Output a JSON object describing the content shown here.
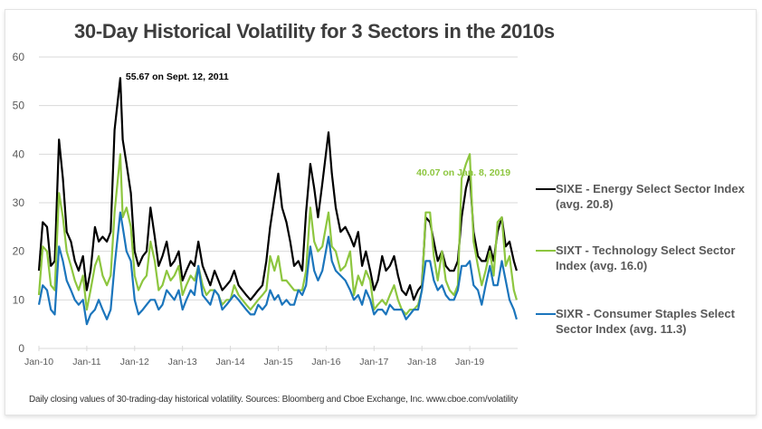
{
  "chart_data": {
    "type": "line",
    "title": "30-Day Historical Volatility for 3 Sectors in the 2010s",
    "xlabel": "",
    "ylabel": "",
    "ylim": [
      0,
      60
    ],
    "xlim": [
      2010.0,
      2020.0
    ],
    "yticks": [
      0,
      10,
      20,
      30,
      40,
      50,
      60
    ],
    "xticks": [
      {
        "value": 2010,
        "label": "Jan-10"
      },
      {
        "value": 2011,
        "label": "Jan-11"
      },
      {
        "value": 2012,
        "label": "Jan-12"
      },
      {
        "value": 2013,
        "label": "Jan-13"
      },
      {
        "value": 2014,
        "label": "Jan-14"
      },
      {
        "value": 2015,
        "label": "Jan-15"
      },
      {
        "value": 2016,
        "label": "Jan-16"
      },
      {
        "value": 2017,
        "label": "Jan-17"
      },
      {
        "value": 2018,
        "label": "Jan-18"
      },
      {
        "value": 2019,
        "label": "Jan-19"
      }
    ],
    "grid": true,
    "legend_position": "right",
    "series": [
      {
        "name": "SIXE - Energy Select Sector Index (avg. 20.8)",
        "color": "#000000",
        "x": [
          2010.0,
          2010.08,
          2010.17,
          2010.25,
          2010.33,
          2010.42,
          2010.5,
          2010.58,
          2010.67,
          2010.75,
          2010.83,
          2010.92,
          2011.0,
          2011.08,
          2011.17,
          2011.25,
          2011.33,
          2011.42,
          2011.5,
          2011.58,
          2011.7,
          2011.75,
          2011.83,
          2011.92,
          2012.0,
          2012.08,
          2012.17,
          2012.25,
          2012.33,
          2012.42,
          2012.5,
          2012.58,
          2012.67,
          2012.75,
          2012.83,
          2012.92,
          2013.0,
          2013.08,
          2013.17,
          2013.25,
          2013.33,
          2013.42,
          2013.5,
          2013.58,
          2013.67,
          2013.75,
          2013.83,
          2013.92,
          2014.0,
          2014.08,
          2014.17,
          2014.25,
          2014.33,
          2014.42,
          2014.5,
          2014.58,
          2014.67,
          2014.75,
          2014.83,
          2014.92,
          2015.0,
          2015.08,
          2015.17,
          2015.25,
          2015.33,
          2015.42,
          2015.5,
          2015.58,
          2015.67,
          2015.75,
          2015.83,
          2015.92,
          2016.05,
          2016.12,
          2016.2,
          2016.3,
          2016.4,
          2016.5,
          2016.58,
          2016.67,
          2016.75,
          2016.83,
          2016.92,
          2017.0,
          2017.08,
          2017.17,
          2017.25,
          2017.33,
          2017.42,
          2017.5,
          2017.58,
          2017.67,
          2017.75,
          2017.83,
          2017.92,
          2018.0,
          2018.08,
          2018.17,
          2018.25,
          2018.33,
          2018.42,
          2018.5,
          2018.58,
          2018.67,
          2018.75,
          2018.83,
          2018.92,
          2019.0,
          2019.08,
          2019.17,
          2019.25,
          2019.33,
          2019.42,
          2019.5,
          2019.58,
          2019.67,
          2019.75,
          2019.83,
          2019.92,
          2019.98
        ],
        "values": [
          16,
          26,
          25,
          17,
          18,
          43,
          35,
          24,
          22,
          18,
          16,
          19,
          12,
          16,
          25,
          22,
          23,
          22,
          24,
          45,
          55.67,
          43,
          38,
          32,
          20,
          17,
          19,
          20,
          29,
          23,
          17,
          19,
          22,
          17,
          18,
          20,
          14,
          16,
          18,
          17,
          22,
          17,
          15,
          13,
          16,
          14,
          12,
          13,
          14,
          16,
          13,
          12,
          11,
          10,
          11,
          12,
          13,
          18,
          25,
          31,
          36,
          29,
          26,
          22,
          17,
          18,
          16,
          28,
          38,
          33,
          27,
          34,
          44.5,
          36,
          29,
          24,
          25,
          23,
          21,
          24,
          17,
          20,
          16,
          12,
          14,
          19,
          16,
          17,
          19,
          15,
          12,
          11,
          13,
          10,
          12,
          13,
          27,
          26,
          22,
          18,
          20,
          17,
          16,
          16,
          18,
          27,
          33,
          36,
          24,
          19,
          18,
          18,
          21,
          18,
          24,
          27,
          21,
          22,
          18,
          16
        ]
      },
      {
        "name": "SIXT - Technology Select Sector Index (avg. 16.0)",
        "color": "#8dc63f",
        "x": [
          2010.0,
          2010.08,
          2010.17,
          2010.25,
          2010.33,
          2010.42,
          2010.5,
          2010.58,
          2010.67,
          2010.75,
          2010.83,
          2010.92,
          2011.0,
          2011.08,
          2011.17,
          2011.25,
          2011.33,
          2011.42,
          2011.5,
          2011.58,
          2011.7,
          2011.75,
          2011.83,
          2011.92,
          2012.0,
          2012.08,
          2012.17,
          2012.25,
          2012.33,
          2012.42,
          2012.5,
          2012.58,
          2012.67,
          2012.75,
          2012.83,
          2012.92,
          2013.0,
          2013.08,
          2013.17,
          2013.25,
          2013.33,
          2013.42,
          2013.5,
          2013.58,
          2013.67,
          2013.75,
          2013.83,
          2013.92,
          2014.0,
          2014.08,
          2014.17,
          2014.25,
          2014.33,
          2014.42,
          2014.5,
          2014.58,
          2014.67,
          2014.75,
          2014.83,
          2014.92,
          2015.0,
          2015.08,
          2015.17,
          2015.25,
          2015.33,
          2015.42,
          2015.5,
          2015.58,
          2015.67,
          2015.75,
          2015.83,
          2015.92,
          2016.05,
          2016.12,
          2016.2,
          2016.3,
          2016.4,
          2016.5,
          2016.58,
          2016.67,
          2016.75,
          2016.83,
          2016.92,
          2017.0,
          2017.08,
          2017.17,
          2017.25,
          2017.33,
          2017.42,
          2017.5,
          2017.58,
          2017.67,
          2017.75,
          2017.83,
          2017.92,
          2018.0,
          2018.08,
          2018.17,
          2018.25,
          2018.33,
          2018.42,
          2018.5,
          2018.58,
          2018.67,
          2018.75,
          2018.83,
          2018.92,
          2019.0,
          2019.08,
          2019.17,
          2019.25,
          2019.33,
          2019.42,
          2019.5,
          2019.58,
          2019.67,
          2019.75,
          2019.83,
          2019.92,
          2019.98
        ],
        "values": [
          11,
          21,
          20,
          13,
          12,
          32,
          27,
          20,
          17,
          14,
          12,
          15,
          8,
          12,
          17,
          19,
          15,
          13,
          15,
          28,
          40,
          27,
          29,
          25,
          15,
          12,
          14,
          15,
          22,
          18,
          12,
          13,
          16,
          14,
          15,
          17,
          11,
          13,
          15,
          14,
          17,
          13,
          11,
          12,
          12,
          11,
          9,
          10,
          10,
          13,
          11,
          10,
          9,
          8,
          9,
          10,
          11,
          12,
          19,
          16,
          19,
          14,
          14,
          13,
          12,
          12,
          12,
          16,
          29,
          22,
          20,
          21,
          28,
          21,
          20,
          16,
          17,
          20,
          11,
          15,
          13,
          16,
          14,
          8,
          9,
          10,
          9,
          11,
          13,
          10,
          8,
          7,
          8,
          8,
          9,
          12,
          28,
          28,
          19,
          14,
          20,
          14,
          12,
          11,
          13,
          35,
          38,
          40,
          22,
          17,
          13,
          16,
          20,
          15,
          26,
          27,
          17,
          19,
          12,
          10
        ]
      },
      {
        "name": "SIXR - Consumer Staples Select Sector Index (avg. 11.3)",
        "color": "#1b75bc",
        "x": [
          2010.0,
          2010.08,
          2010.17,
          2010.25,
          2010.33,
          2010.42,
          2010.5,
          2010.58,
          2010.67,
          2010.75,
          2010.83,
          2010.92,
          2011.0,
          2011.08,
          2011.17,
          2011.25,
          2011.33,
          2011.42,
          2011.5,
          2011.58,
          2011.7,
          2011.75,
          2011.83,
          2011.92,
          2012.0,
          2012.08,
          2012.17,
          2012.25,
          2012.33,
          2012.42,
          2012.5,
          2012.58,
          2012.67,
          2012.75,
          2012.83,
          2012.92,
          2013.0,
          2013.08,
          2013.17,
          2013.25,
          2013.33,
          2013.42,
          2013.5,
          2013.58,
          2013.67,
          2013.75,
          2013.83,
          2013.92,
          2014.0,
          2014.08,
          2014.17,
          2014.25,
          2014.33,
          2014.42,
          2014.5,
          2014.58,
          2014.67,
          2014.75,
          2014.83,
          2014.92,
          2015.0,
          2015.08,
          2015.17,
          2015.25,
          2015.33,
          2015.42,
          2015.5,
          2015.58,
          2015.67,
          2015.75,
          2015.83,
          2015.92,
          2016.05,
          2016.12,
          2016.2,
          2016.3,
          2016.4,
          2016.5,
          2016.58,
          2016.67,
          2016.75,
          2016.83,
          2016.92,
          2017.0,
          2017.08,
          2017.17,
          2017.25,
          2017.33,
          2017.42,
          2017.5,
          2017.58,
          2017.67,
          2017.75,
          2017.83,
          2017.92,
          2018.0,
          2018.08,
          2018.17,
          2018.25,
          2018.33,
          2018.42,
          2018.5,
          2018.58,
          2018.67,
          2018.75,
          2018.83,
          2018.92,
          2019.0,
          2019.08,
          2019.17,
          2019.25,
          2019.33,
          2019.42,
          2019.5,
          2019.58,
          2019.67,
          2019.75,
          2019.83,
          2019.92,
          2019.98
        ],
        "values": [
          9,
          13,
          12,
          8,
          7,
          21,
          18,
          14,
          12,
          10,
          9,
          10,
          5,
          7,
          8,
          10,
          8,
          6,
          8,
          17,
          28,
          25,
          20,
          18,
          10,
          7,
          8,
          9,
          10,
          10,
          8,
          9,
          12,
          11,
          10,
          12,
          8,
          10,
          12,
          11,
          17,
          11,
          10,
          9,
          12,
          11,
          8,
          9,
          10,
          11,
          10,
          9,
          8,
          7,
          7,
          9,
          8,
          9,
          12,
          10,
          11,
          9,
          10,
          9,
          9,
          12,
          11,
          13,
          21,
          16,
          14,
          16,
          23,
          18,
          16,
          15,
          14,
          12,
          10,
          11,
          9,
          12,
          10,
          7,
          8,
          8,
          7,
          9,
          8,
          8,
          8,
          6,
          7,
          8,
          8,
          12,
          18,
          18,
          14,
          12,
          13,
          11,
          10,
          10,
          12,
          17,
          17,
          18,
          13,
          12,
          9,
          13,
          17,
          13,
          13,
          18,
          14,
          10,
          8,
          6
        ]
      }
    ],
    "annotations": [
      {
        "text": "55.67 on Sept. 12, 2011",
        "x": 2011.7,
        "y": 55.67,
        "color": "#000000"
      },
      {
        "text": "40.07 on Jan. 8, 2019",
        "x": 2019.02,
        "y": 40.07,
        "color": "#8dc63f"
      }
    ]
  },
  "legend": [
    {
      "line1": "SIXE - Energy Select Sector Index",
      "line2": "(avg. 20.8)",
      "color": "#000000"
    },
    {
      "line1": "SIXT - Technology Select Sector",
      "line2": "Index (avg. 16.0)",
      "color": "#8dc63f"
    },
    {
      "line1": "SIXR - Consumer Staples Select",
      "line2": "Sector Index (avg. 11.3)",
      "color": "#1b75bc"
    }
  ],
  "footer": "Daily closing values of 30-trading-day historical volatility.  Sources: Bloomberg and Cboe Exchange, Inc.  www.cboe.com/volatility"
}
